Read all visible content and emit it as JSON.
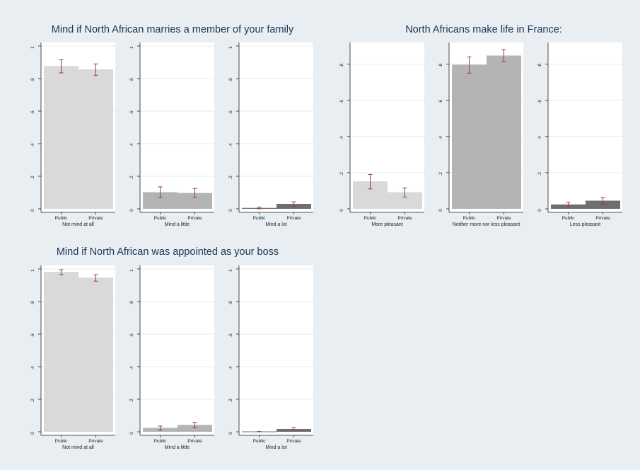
{
  "colors": {
    "background": "#e9eef2",
    "plot_bg": "#ffffff",
    "grid": "#e6eaee",
    "axis": "#222222",
    "title": "#1c3557",
    "light_bar": "#d9d9d9",
    "mid_bar": "#b4b4b4",
    "dark_bar": "#6e6e6e",
    "error_bar": "#9b3a3a"
  },
  "chart_data": [
    {
      "type": "bar",
      "group": "Mind if North African marries a member of your family",
      "title": "Mind if North African marries a member of your family",
      "xlabel": "Not mind at all",
      "categories": [
        "Public",
        "Private"
      ],
      "values": [
        0.875,
        0.855
      ],
      "error_low": [
        0.835,
        0.82
      ],
      "error_high": [
        0.915,
        0.89
      ],
      "ylim": [
        0,
        1
      ],
      "yticks": [
        "0",
        ".2",
        ".4",
        ".6",
        ".8",
        "1"
      ],
      "bar_color": "light_bar",
      "grid": true
    },
    {
      "type": "bar",
      "group": "Mind if North African marries a member of your family",
      "xlabel": "Mind a little",
      "categories": [
        "Public",
        "Private"
      ],
      "values": [
        0.1,
        0.095
      ],
      "error_low": [
        0.07,
        0.07
      ],
      "error_high": [
        0.135,
        0.125
      ],
      "ylim": [
        0,
        1
      ],
      "yticks": [
        "0",
        ".2",
        ".4",
        ".6",
        ".8",
        "1"
      ],
      "bar_color": "mid_bar",
      "grid": true
    },
    {
      "type": "bar",
      "group": "Mind if North African marries a member of your family",
      "xlabel": "Mind a lot",
      "categories": [
        "Public",
        "Private"
      ],
      "values": [
        0.003,
        0.028
      ],
      "error_low": [
        0.0,
        0.015
      ],
      "error_high": [
        0.01,
        0.043
      ],
      "ylim": [
        0,
        1
      ],
      "yticks": [
        "0",
        ".2",
        ".4",
        ".6",
        ".8",
        "1"
      ],
      "bar_color": "dark_bar",
      "grid": true
    },
    {
      "type": "bar",
      "group": "North Africans make life in France:",
      "title": "North Africans make life in France:",
      "xlabel": "More pleasant",
      "categories": [
        "Public",
        "Private"
      ],
      "values": [
        0.15,
        0.09
      ],
      "error_low": [
        0.11,
        0.065
      ],
      "error_high": [
        0.19,
        0.115
      ],
      "ylim": [
        0,
        0.9
      ],
      "yticks": [
        "0",
        ".2",
        ".4",
        ".6",
        ".8"
      ],
      "bar_color": "light_bar",
      "grid": true
    },
    {
      "type": "bar",
      "group": "North Africans make life in France:",
      "xlabel": "Neither more nor less pleasant",
      "categories": [
        "Public",
        "Private"
      ],
      "values": [
        0.795,
        0.845
      ],
      "error_low": [
        0.75,
        0.815
      ],
      "error_high": [
        0.84,
        0.88
      ],
      "ylim": [
        0,
        0.9
      ],
      "yticks": [
        "0",
        ".2",
        ".4",
        ".6",
        ".8"
      ],
      "bar_color": "mid_bar",
      "grid": true
    },
    {
      "type": "bar",
      "group": "North Africans make life in France:",
      "xlabel": "Less pleasant",
      "categories": [
        "Public",
        "Private"
      ],
      "values": [
        0.022,
        0.043
      ],
      "error_low": [
        0.01,
        0.025
      ],
      "error_high": [
        0.035,
        0.063
      ],
      "ylim": [
        0,
        0.9
      ],
      "yticks": [
        "0",
        ".2",
        ".4",
        ".6",
        ".8"
      ],
      "bar_color": "dark_bar",
      "grid": true
    },
    {
      "type": "bar",
      "group": "Mind if North African was appointed as your boss",
      "title": "Mind if North African was appointed as your boss",
      "xlabel": "Not mind at all",
      "categories": [
        "Public",
        "Private"
      ],
      "values": [
        0.98,
        0.945
      ],
      "error_low": [
        0.965,
        0.925
      ],
      "error_high": [
        0.995,
        0.965
      ],
      "ylim": [
        0,
        1
      ],
      "yticks": [
        "0",
        ".2",
        ".4",
        ".6",
        ".8",
        "1"
      ],
      "bar_color": "light_bar",
      "grid": true
    },
    {
      "type": "bar",
      "group": "Mind if North African was appointed as your boss",
      "xlabel": "Mind a little",
      "categories": [
        "Public",
        "Private"
      ],
      "values": [
        0.022,
        0.04
      ],
      "error_low": [
        0.01,
        0.025
      ],
      "error_high": [
        0.035,
        0.058
      ],
      "ylim": [
        0,
        1
      ],
      "yticks": [
        "0",
        ".2",
        ".4",
        ".6",
        ".8",
        "1"
      ],
      "bar_color": "mid_bar",
      "grid": true
    },
    {
      "type": "bar",
      "group": "Mind if North African was appointed as your boss",
      "xlabel": "Mind a lot",
      "categories": [
        "Public",
        "Private"
      ],
      "values": [
        0.0,
        0.015
      ],
      "error_low": [
        0.0,
        0.007
      ],
      "error_high": [
        0.002,
        0.025
      ],
      "ylim": [
        0,
        1
      ],
      "yticks": [
        "0",
        ".2",
        ".4",
        ".6",
        ".8",
        "1"
      ],
      "bar_color": "dark_bar",
      "grid": true
    }
  ]
}
